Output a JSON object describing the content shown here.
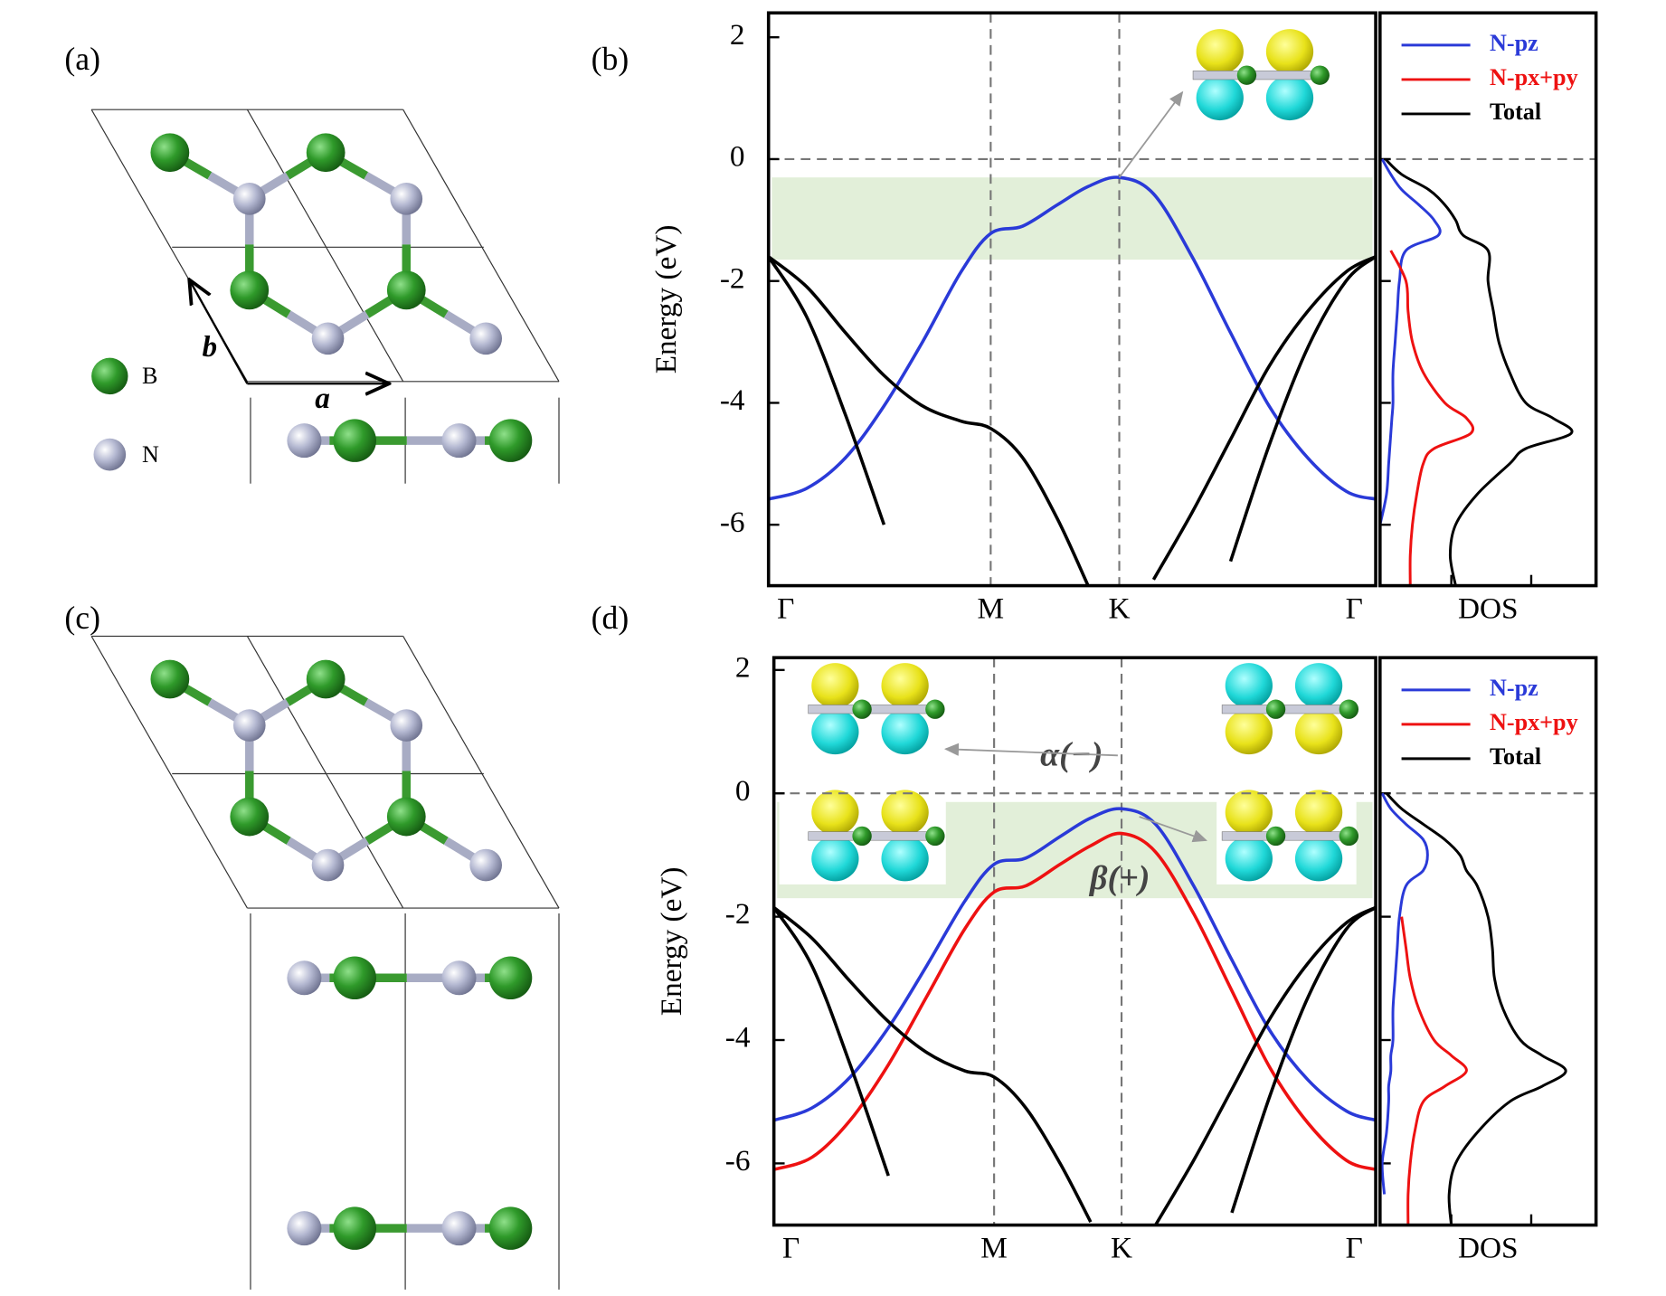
{
  "labels": {
    "panels": [
      "(a)",
      "(b)",
      "(c)",
      "(d)"
    ],
    "atoms": [
      "B",
      "N"
    ],
    "lattice_vectors": [
      "a",
      "b"
    ]
  },
  "chart_data": [
    {
      "type": "line",
      "ylabel": "Energy (eV)",
      "x": [
        0,
        0.1,
        0.2,
        0.3,
        0.4,
        0.5,
        0.577,
        0.66,
        0.75,
        0.83,
        0.911,
        1.0,
        1.1,
        1.2,
        1.3,
        1.4,
        1.5,
        1.577
      ],
      "xlim": [
        0,
        1.577
      ],
      "xticks": [
        {
          "value": 0,
          "label": "Γ"
        },
        {
          "value": 0.577,
          "label": "M"
        },
        {
          "value": 0.911,
          "label": "K"
        },
        {
          "value": 1.577,
          "label": "Γ"
        }
      ],
      "ylim": [
        -7,
        2.4
      ],
      "yticks": [
        -6,
        -4,
        -2,
        0,
        2
      ],
      "grid": true,
      "reference_line": 0,
      "highlight": [
        -1.65,
        -0.3
      ],
      "series": [
        {
          "color": "#2a3ad8",
          "values": [
            -5.58,
            -5.4,
            -4.9,
            -4.05,
            -3.0,
            -1.85,
            -1.22,
            -1.1,
            -0.75,
            -0.45,
            -0.3,
            -0.57,
            -1.6,
            -2.85,
            -4.05,
            -4.9,
            -5.45,
            -5.58
          ]
        },
        {
          "color": "#000000",
          "values": [
            -1.6,
            -2.1,
            -2.85,
            -3.55,
            -4.05,
            -4.3,
            -4.42,
            -4.9,
            -5.9,
            -7.0,
            null,
            -6.9,
            -5.8,
            -4.6,
            -3.4,
            -2.5,
            -1.85,
            -1.6
          ]
        },
        {
          "color": "#000000",
          "values": [
            -1.6,
            -2.6,
            -4.2,
            -6.0,
            null,
            null,
            null,
            null,
            null,
            null,
            null,
            null,
            null,
            -6.6,
            -4.7,
            -3.1,
            -2.0,
            -1.6
          ]
        }
      ]
    },
    {
      "type": "dos",
      "xlabel": "DOS",
      "energy": [
        0,
        -0.25,
        -0.5,
        -0.75,
        -1,
        -1.25,
        -1.5,
        -2,
        -2.5,
        -3,
        -3.5,
        -4,
        -4.25,
        -4.5,
        -4.75,
        -5,
        -5.5,
        -6,
        -6.5,
        -7
      ],
      "xlim": [
        0,
        1
      ],
      "ylim": [
        -7,
        2.4
      ],
      "yticks": [
        -6,
        -4,
        -2,
        0
      ],
      "reference_line": 0,
      "legend": "upper right",
      "series": [
        {
          "name": "N-pz",
          "color": "#2a3ad8",
          "values": [
            0.01,
            0.05,
            0.1,
            0.18,
            0.25,
            0.27,
            0.12,
            0.09,
            0.08,
            0.07,
            0.06,
            0.06,
            0.055,
            0.05,
            0.045,
            0.04,
            0.03,
            0.0,
            null,
            null
          ]
        },
        {
          "name": "N-px+py",
          "color": "#ee1111",
          "values": [
            null,
            null,
            null,
            null,
            null,
            null,
            0.05,
            0.12,
            0.13,
            0.15,
            0.2,
            0.3,
            0.4,
            0.42,
            0.25,
            0.2,
            0.17,
            0.15,
            0.14,
            0.14
          ]
        },
        {
          "name": "Total",
          "color": "#000000",
          "values": [
            0.025,
            0.1,
            0.225,
            0.3,
            0.35,
            0.385,
            0.5,
            0.5,
            0.525,
            0.55,
            0.6,
            0.675,
            0.8,
            0.885,
            0.675,
            0.6,
            0.45,
            0.35,
            0.325,
            0.35
          ]
        }
      ]
    },
    {
      "type": "line",
      "ylabel": "Energy (eV)",
      "x": [
        0,
        0.1,
        0.2,
        0.3,
        0.4,
        0.5,
        0.577,
        0.66,
        0.75,
        0.83,
        0.911,
        1.0,
        1.1,
        1.2,
        1.3,
        1.4,
        1.5,
        1.577
      ],
      "xlim": [
        0,
        1.577
      ],
      "xticks": [
        {
          "value": 0,
          "label": "Γ"
        },
        {
          "value": 0.577,
          "label": "M"
        },
        {
          "value": 0.911,
          "label": "K"
        },
        {
          "value": 1.577,
          "label": "Γ"
        }
      ],
      "ylim": [
        -7,
        2.2
      ],
      "yticks": [
        -6,
        -4,
        -2,
        0,
        2
      ],
      "grid": true,
      "reference_line": 0,
      "highlight": [
        -1.7,
        -0.14
      ],
      "annotations": [
        "α(−)",
        "β(+)"
      ],
      "series": [
        {
          "color": "#2a3ad8",
          "values": [
            -5.3,
            -5.1,
            -4.6,
            -3.8,
            -2.8,
            -1.75,
            -1.15,
            -1.05,
            -0.7,
            -0.4,
            -0.25,
            -0.5,
            -1.5,
            -2.7,
            -3.85,
            -4.65,
            -5.15,
            -5.3
          ]
        },
        {
          "color": "#ee1111",
          "values": [
            -6.1,
            -5.9,
            -5.3,
            -4.4,
            -3.3,
            -2.2,
            -1.6,
            -1.5,
            -1.15,
            -0.85,
            -0.65,
            -0.95,
            -1.95,
            -3.2,
            -4.45,
            -5.35,
            -5.95,
            -6.1
          ]
        },
        {
          "color": "#000000",
          "values": [
            -1.85,
            -2.35,
            -3.05,
            -3.7,
            -4.2,
            -4.5,
            -4.6,
            -5.1,
            -6.0,
            -6.95,
            null,
            -7.0,
            -5.95,
            -4.8,
            -3.65,
            -2.75,
            -2.1,
            -1.85
          ]
        },
        {
          "color": "#000000",
          "values": [
            -1.85,
            -2.8,
            -4.4,
            -6.2,
            null,
            null,
            null,
            null,
            null,
            null,
            null,
            null,
            null,
            -6.8,
            -4.9,
            -3.3,
            -2.2,
            -1.85
          ]
        }
      ]
    },
    {
      "type": "dos",
      "xlabel": "DOS",
      "energy": [
        0,
        -0.25,
        -0.5,
        -0.75,
        -1,
        -1.25,
        -1.5,
        -2,
        -2.5,
        -3,
        -3.5,
        -4,
        -4.25,
        -4.5,
        -4.75,
        -5,
        -5.5,
        -6,
        -6.5,
        -7
      ],
      "xlim": [
        0,
        1
      ],
      "ylim": [
        -7,
        2.2
      ],
      "yticks": [
        -6,
        -4,
        -2,
        0
      ],
      "reference_line": 0,
      "legend": "upper right",
      "series": [
        {
          "name": "N-pz",
          "color": "#2a3ad8",
          "values": [
            0.01,
            0.05,
            0.12,
            0.2,
            0.22,
            0.2,
            0.12,
            0.09,
            0.08,
            0.07,
            0.06,
            0.06,
            0.05,
            0.05,
            0.04,
            0.04,
            0.03,
            0.01,
            0.02,
            null
          ]
        },
        {
          "name": "N-px+py",
          "color": "#ee1111",
          "values": [
            null,
            null,
            null,
            null,
            null,
            null,
            null,
            0.1,
            0.12,
            0.14,
            0.18,
            0.25,
            0.33,
            0.4,
            0.3,
            0.2,
            0.16,
            0.14,
            0.13,
            0.13
          ]
        },
        {
          "name": "Total",
          "color": "#000000",
          "values": [
            0.03,
            0.1,
            0.2,
            0.3,
            0.37,
            0.4,
            0.45,
            0.5,
            0.52,
            0.53,
            0.57,
            0.65,
            0.75,
            0.86,
            0.75,
            0.6,
            0.45,
            0.35,
            0.32,
            0.33
          ]
        }
      ]
    }
  ]
}
